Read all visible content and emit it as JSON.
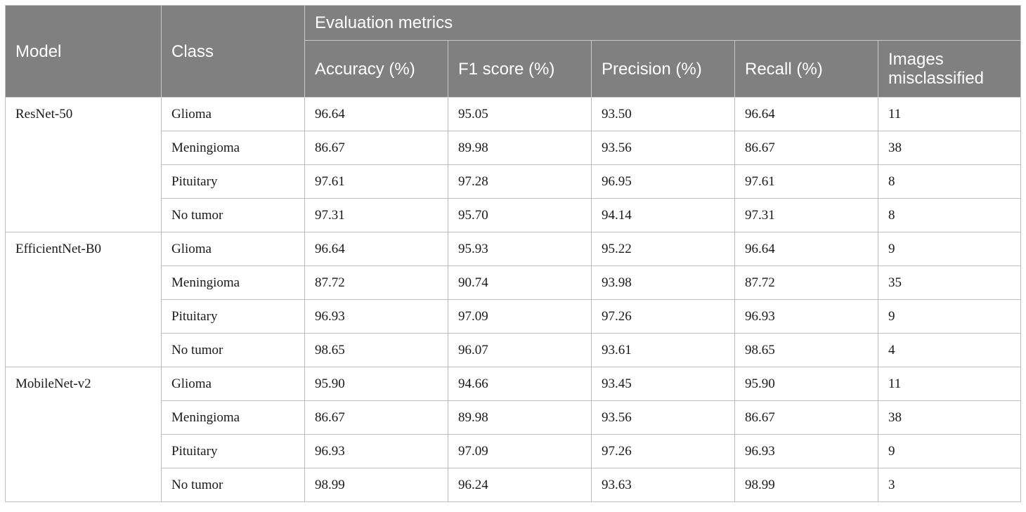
{
  "table": {
    "headers": {
      "model": "Model",
      "class": "Class",
      "group": "Evaluation metrics",
      "metrics": [
        "Accuracy (%)",
        "F1 score (%)",
        "Precision (%)",
        "Recall (%)",
        "Images misclassified"
      ]
    },
    "groups": [
      {
        "model": "ResNet-50",
        "rows": [
          {
            "class": "Glioma",
            "accuracy": "96.64",
            "f1": "95.05",
            "precision": "93.50",
            "recall": "96.64",
            "misclassified": "11"
          },
          {
            "class": "Meningioma",
            "accuracy": "86.67",
            "f1": "89.98",
            "precision": "93.56",
            "recall": "86.67",
            "misclassified": "38"
          },
          {
            "class": "Pituitary",
            "accuracy": "97.61",
            "f1": "97.28",
            "precision": "96.95",
            "recall": "97.61",
            "misclassified": "8"
          },
          {
            "class": "No tumor",
            "accuracy": "97.31",
            "f1": "95.70",
            "precision": "94.14",
            "recall": "97.31",
            "misclassified": "8"
          }
        ]
      },
      {
        "model": "EfficientNet-B0",
        "rows": [
          {
            "class": "Glioma",
            "accuracy": "96.64",
            "f1": "95.93",
            "precision": "95.22",
            "recall": "96.64",
            "misclassified": "9"
          },
          {
            "class": "Meningioma",
            "accuracy": "87.72",
            "f1": "90.74",
            "precision": "93.98",
            "recall": "87.72",
            "misclassified": "35"
          },
          {
            "class": "Pituitary",
            "accuracy": "96.93",
            "f1": "97.09",
            "precision": "97.26",
            "recall": "96.93",
            "misclassified": "9"
          },
          {
            "class": "No tumor",
            "accuracy": "98.65",
            "f1": "96.07",
            "precision": "93.61",
            "recall": "98.65",
            "misclassified": "4"
          }
        ]
      },
      {
        "model": "MobileNet-v2",
        "rows": [
          {
            "class": "Glioma",
            "accuracy": "95.90",
            "f1": "94.66",
            "precision": "93.45",
            "recall": "95.90",
            "misclassified": "11"
          },
          {
            "class": "Meningioma",
            "accuracy": "86.67",
            "f1": "89.98",
            "precision": "93.56",
            "recall": "86.67",
            "misclassified": "38"
          },
          {
            "class": "Pituitary",
            "accuracy": "96.93",
            "f1": "97.09",
            "precision": "97.26",
            "recall": "96.93",
            "misclassified": "9"
          },
          {
            "class": "No tumor",
            "accuracy": "98.99",
            "f1": "96.24",
            "precision": "93.63",
            "recall": "98.99",
            "misclassified": "3"
          }
        ]
      }
    ]
  }
}
